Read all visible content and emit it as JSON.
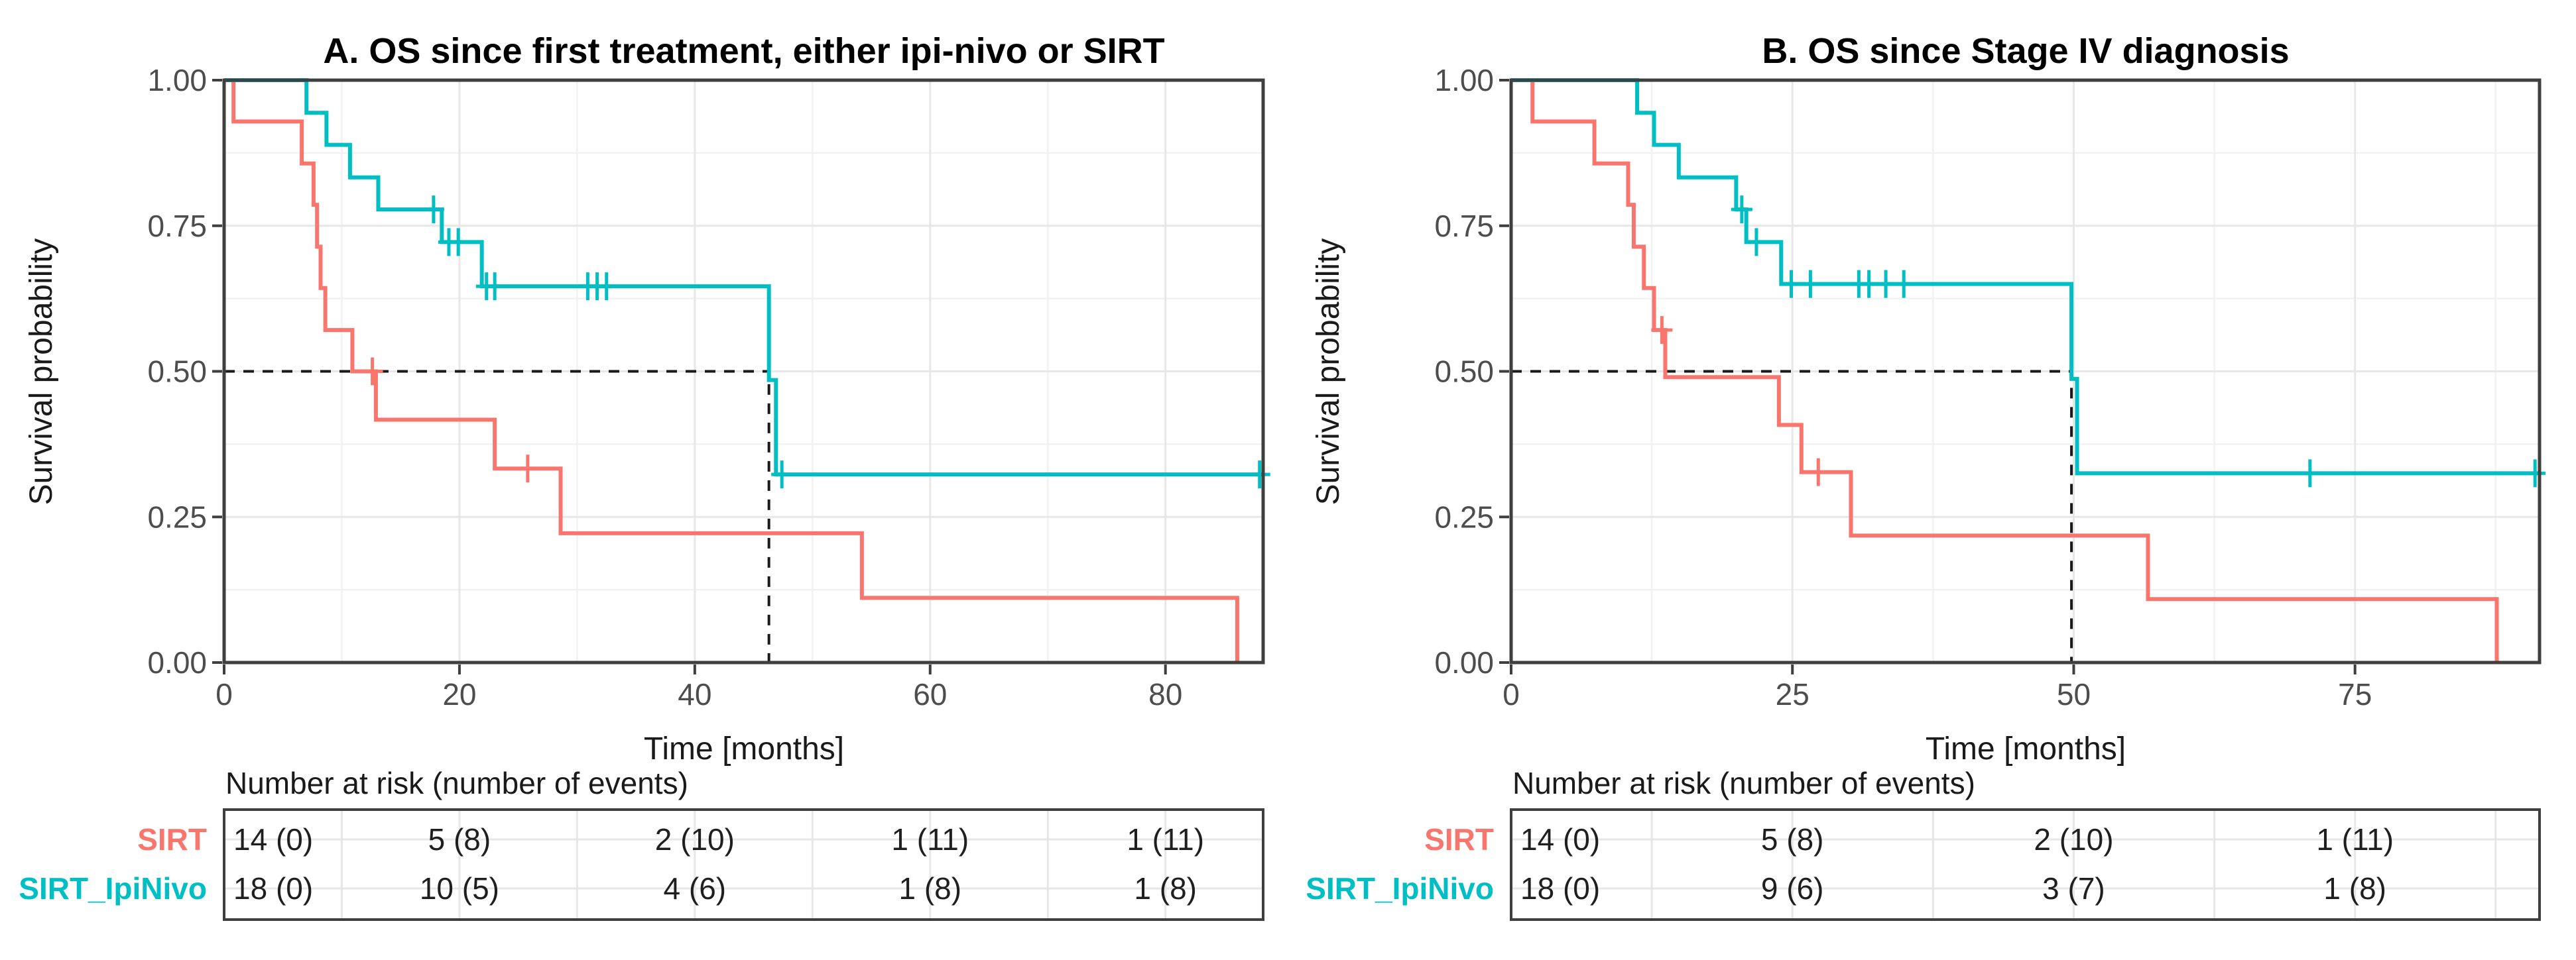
{
  "figure": {
    "background": "#ffffff",
    "colors": {
      "sirt": "#F8766D",
      "sirt_ipinivo": "#00BFC4",
      "grid_major": "#E7E7E7",
      "grid_minor": "#F2F2F2",
      "border": "#3F3F3F",
      "median_dash": "#1a1a1a",
      "tick_text": "#4d4d4d"
    }
  },
  "chart_data": [
    {
      "type": "line",
      "subtype": "kaplan-meier-step",
      "title": "A. OS since first treatment, either ipi-nivo or SIRT",
      "xlabel": "Time [months]",
      "ylabel": "Survival probability",
      "xlim": [
        0,
        88.3
      ],
      "ylim": [
        0,
        1
      ],
      "xticks": [
        0,
        20,
        40,
        60,
        80
      ],
      "yticks": [
        0,
        0.25,
        0.5,
        0.75,
        1
      ],
      "grid": true,
      "legend_position": "none",
      "median_line": {
        "time_months": 46.3,
        "probability": 0.5
      },
      "series": [
        {
          "name": "SIRT",
          "color": "#F8766D",
          "steps": [
            [
              0,
              1
            ],
            [
              0.8,
              0.929
            ],
            [
              6.6,
              0.857
            ],
            [
              7.6,
              0.786
            ],
            [
              7.9,
              0.714
            ],
            [
              8.2,
              0.643
            ],
            [
              8.6,
              0.571
            ],
            [
              10.9,
              0.5
            ],
            [
              12.9,
              0.417
            ],
            [
              23,
              0.333
            ],
            [
              28.6,
              0.222
            ],
            [
              54.2,
              0.111
            ],
            [
              86.1,
              0
            ]
          ],
          "end_time": 86.1,
          "censors": [
            [
              12.6,
              0.5
            ],
            [
              25.8,
              0.333
            ]
          ]
        },
        {
          "name": "SIRT_IpiNivo",
          "color": "#00BFC4",
          "steps": [
            [
              0,
              1
            ],
            [
              7,
              0.944
            ],
            [
              8.7,
              0.889
            ],
            [
              10.7,
              0.833
            ],
            [
              13.1,
              0.778
            ],
            [
              18.5,
              0.722
            ],
            [
              21.9,
              0.646
            ],
            [
              46.3,
              0.485
            ],
            [
              46.9,
              0.323
            ]
          ],
          "end_time": 88.3,
          "censors": [
            [
              17.8,
              0.778
            ],
            [
              19.1,
              0.722
            ],
            [
              19.9,
              0.722
            ],
            [
              22.3,
              0.646
            ],
            [
              23,
              0.646
            ],
            [
              30.9,
              0.646
            ],
            [
              31.7,
              0.646
            ],
            [
              32.5,
              0.646
            ],
            [
              47.4,
              0.323
            ],
            [
              88,
              0.323
            ]
          ]
        }
      ],
      "risk_table": {
        "header": "Number at risk (number of events)",
        "times": [
          0,
          20,
          40,
          60,
          80
        ],
        "rows": [
          {
            "label": "SIRT",
            "color": "#F8766D",
            "values": [
              "14 (0)",
              "5 (8)",
              "2 (10)",
              "1 (11)",
              "1 (11)"
            ]
          },
          {
            "label": "SIRT_IpiNivo",
            "color": "#00BFC4",
            "values": [
              "18 (0)",
              "10 (5)",
              "4 (6)",
              "1 (8)",
              "1 (8)"
            ]
          }
        ]
      }
    },
    {
      "type": "line",
      "subtype": "kaplan-meier-step",
      "title": "B. OS since Stage IV diagnosis",
      "xlabel": "Time [months]",
      "ylabel": "Survival probability",
      "xlim": [
        0,
        91.4
      ],
      "ylim": [
        0,
        1
      ],
      "xticks": [
        0,
        25,
        50,
        75
      ],
      "yticks": [
        0,
        0.25,
        0.5,
        0.75,
        1
      ],
      "grid": true,
      "legend_position": "none",
      "median_line": {
        "time_months": 49.8,
        "probability": 0.5
      },
      "series": [
        {
          "name": "SIRT",
          "color": "#F8766D",
          "steps": [
            [
              0,
              1
            ],
            [
              1.9,
              0.929
            ],
            [
              7.4,
              0.857
            ],
            [
              10.4,
              0.786
            ],
            [
              10.9,
              0.714
            ],
            [
              11.8,
              0.643
            ],
            [
              12.7,
              0.571
            ],
            [
              13.7,
              0.49
            ],
            [
              23.8,
              0.408
            ],
            [
              25.8,
              0.327
            ],
            [
              30.2,
              0.218
            ],
            [
              56.6,
              0.109
            ],
            [
              87.6,
              0
            ]
          ],
          "end_time": 87.6,
          "censors": [
            [
              13.4,
              0.571
            ],
            [
              27.3,
              0.327
            ]
          ]
        },
        {
          "name": "SIRT_IpiNivo",
          "color": "#00BFC4",
          "steps": [
            [
              0,
              1
            ],
            [
              11.2,
              0.944
            ],
            [
              12.7,
              0.889
            ],
            [
              14.9,
              0.833
            ],
            [
              20,
              0.778
            ],
            [
              20.9,
              0.722
            ],
            [
              24,
              0.65
            ],
            [
              49.8,
              0.487
            ],
            [
              50.3,
              0.325
            ]
          ],
          "end_time": 91.4,
          "censors": [
            [
              20.5,
              0.778
            ],
            [
              21.8,
              0.722
            ],
            [
              24.9,
              0.65
            ],
            [
              26.6,
              0.65
            ],
            [
              30.9,
              0.65
            ],
            [
              31.8,
              0.65
            ],
            [
              33.3,
              0.65
            ],
            [
              34.9,
              0.65
            ],
            [
              71,
              0.325
            ],
            [
              91,
              0.325
            ]
          ]
        }
      ],
      "risk_table": {
        "header": "Number at risk (number of events)",
        "times": [
          0,
          25,
          50,
          75
        ],
        "rows": [
          {
            "label": "SIRT",
            "color": "#F8766D",
            "values": [
              "14 (0)",
              "5 (8)",
              "2 (10)",
              "1 (11)"
            ]
          },
          {
            "label": "SIRT_IpiNivo",
            "color": "#00BFC4",
            "values": [
              "18 (0)",
              "9 (6)",
              "3 (7)",
              "1 (8)"
            ]
          }
        ]
      }
    }
  ]
}
